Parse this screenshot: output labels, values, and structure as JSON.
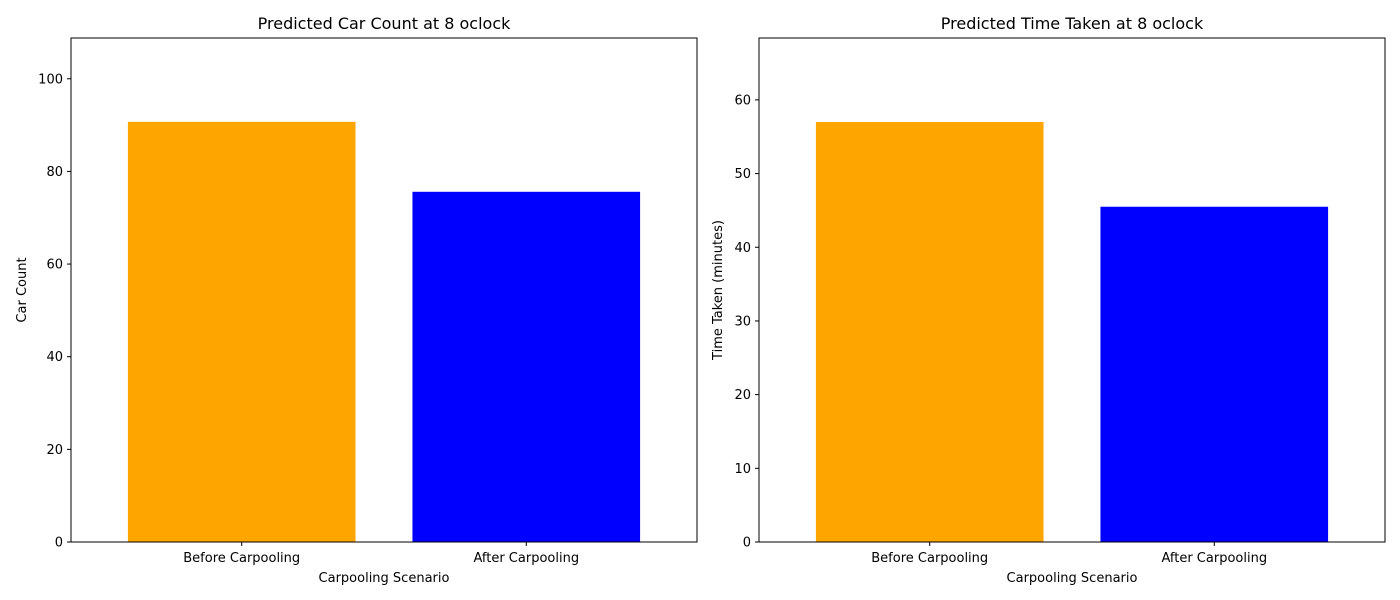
{
  "chart_data": [
    {
      "type": "bar",
      "title": "Predicted Car Count at 8 oclock",
      "xlabel": "Carpooling Scenario",
      "ylabel": "Car Count",
      "categories": [
        "Before Carpooling",
        "After Carpooling"
      ],
      "values": [
        90.7,
        75.6
      ],
      "colors": [
        "#ffa500",
        "#0000ff"
      ],
      "ylim": [
        0,
        108.8
      ],
      "yticks": [
        0,
        20,
        40,
        60,
        80,
        100
      ],
      "grid": false
    },
    {
      "type": "bar",
      "title": "Predicted Time Taken at 8 oclock",
      "xlabel": "Carpooling Scenario",
      "ylabel": "Time Taken (minutes)",
      "categories": [
        "Before Carpooling",
        "After Carpooling"
      ],
      "values": [
        57.0,
        45.5
      ],
      "colors": [
        "#ffa500",
        "#0000ff"
      ],
      "ylim": [
        0,
        68.4
      ],
      "yticks": [
        0,
        10,
        20,
        30,
        40,
        50,
        60
      ],
      "grid": false
    }
  ]
}
